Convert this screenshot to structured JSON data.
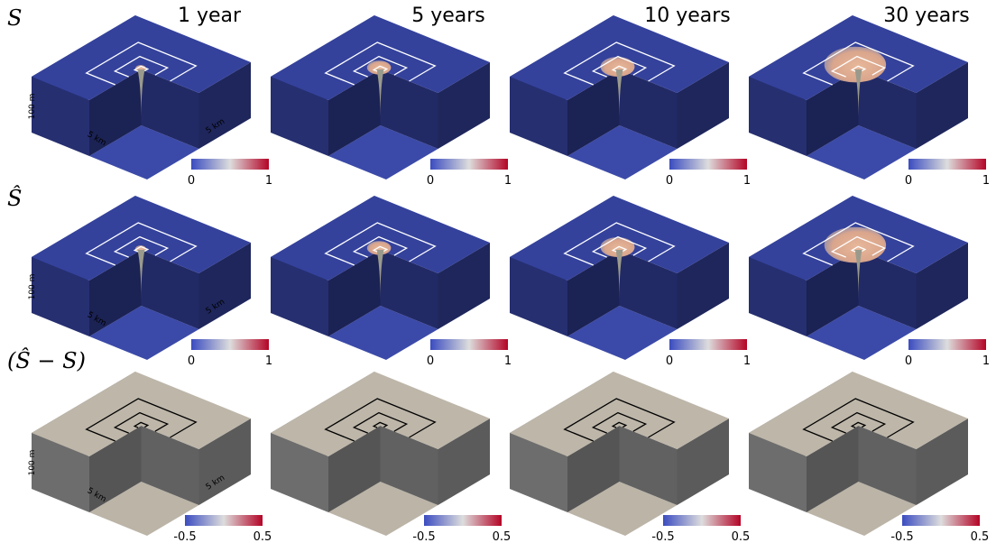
{
  "columns": [
    "1 year",
    "5 years",
    "10 years",
    "30 years"
  ],
  "rows": [
    {
      "label": "S",
      "colorbar": {
        "min": "0",
        "max": "1"
      }
    },
    {
      "label": "Ŝ",
      "colorbar": {
        "min": "0",
        "max": "1"
      }
    },
    {
      "label": "(Ŝ − S)",
      "colorbar": {
        "min": "-0.5",
        "max": "0.5"
      }
    }
  ],
  "axes": {
    "depth": "100 m",
    "x": "5 km",
    "y": "5 km"
  }
}
